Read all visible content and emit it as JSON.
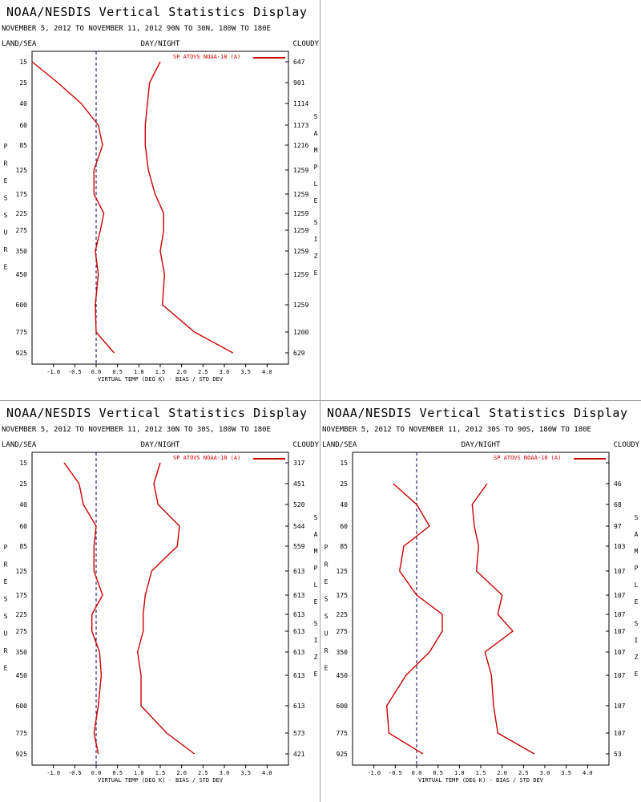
{
  "labels": {
    "land_sea": "LAND/SEA",
    "day_night": "DAY/NIGHT",
    "cloudy": "CLOUDY",
    "pressure": "PRESSURE",
    "sample_size": "SAMPLE SIZE",
    "xlabel": "VIRTUAL TEMP (DEG K) - BIAS / STD DEV",
    "legend": "SP ATOVS NOAA-18 (A)"
  },
  "colors": {
    "series": "#cc0000",
    "zero_line": "#00005a",
    "axis": "#000000",
    "divider": "#9a9a9a"
  },
  "chart_data": [
    {
      "type": "line",
      "title": "NOAA/NESDIS Vertical Statistics Display",
      "subtitle": "NOVEMBER 5, 2012 TO NOVEMBER 11, 2012 90N TO 30N, 180W TO 180E",
      "xlabel": "VIRTUAL TEMP (DEG K) - BIAS / STD DEV",
      "xlim": [
        -1.5,
        4.5
      ],
      "x_ticks": [
        "-1.0",
        "-0.5",
        "0.0",
        "0.5",
        "1.0",
        "1.5",
        "2.0",
        "2.5",
        "3.0",
        "3.5",
        "4.0"
      ],
      "pressure_levels": [
        "15",
        "25",
        "40",
        "60",
        "85",
        "125",
        "175",
        "225",
        "275",
        "350",
        "450",
        "600",
        "775",
        "925"
      ],
      "sample_size": [
        "647",
        "901",
        "1114",
        "1173",
        "1216",
        "1259",
        "1259",
        "1259",
        "1259",
        "1259",
        "1259",
        "1259",
        "1200",
        "629"
      ],
      "series": [
        {
          "name": "bias",
          "x": [
            -1.5,
            -0.9,
            -0.35,
            0.05,
            0.15,
            -0.05,
            -0.05,
            0.18,
            0.1,
            -0.02,
            0.05,
            -0.02,
            0.0,
            0.42
          ]
        },
        {
          "name": "std_dev",
          "x": [
            1.5,
            1.25,
            1.2,
            1.15,
            1.15,
            1.22,
            1.38,
            1.58,
            1.58,
            1.5,
            1.6,
            1.55,
            2.3,
            3.2
          ]
        }
      ]
    },
    {
      "type": "line",
      "title": "NOAA/NESDIS Vertical Statistics Display",
      "subtitle": "NOVEMBER 5, 2012 TO NOVEMBER 11, 2012 30N TO 30S, 180W TO 180E",
      "xlabel": "VIRTUAL TEMP (DEG K) - BIAS / STD DEV",
      "xlim": [
        -1.5,
        4.5
      ],
      "x_ticks": [
        "-1.0",
        "-0.5",
        "0.0",
        "0.5",
        "1.0",
        "1.5",
        "2.0",
        "2.5",
        "3.0",
        "3.5",
        "4.0"
      ],
      "pressure_levels": [
        "15",
        "25",
        "40",
        "60",
        "85",
        "125",
        "175",
        "225",
        "275",
        "350",
        "450",
        "600",
        "775",
        "925"
      ],
      "sample_size": [
        "317",
        "451",
        "520",
        "544",
        "559",
        "613",
        "613",
        "613",
        "613",
        "613",
        "613",
        "613",
        "573",
        "421"
      ],
      "series": [
        {
          "name": "bias",
          "x": [
            -0.75,
            -0.4,
            -0.3,
            0.0,
            -0.05,
            -0.05,
            0.15,
            -0.1,
            -0.1,
            0.08,
            0.12,
            0.05,
            -0.05,
            0.05
          ]
        },
        {
          "name": "std_dev",
          "x": [
            1.5,
            1.35,
            1.45,
            1.95,
            1.9,
            1.3,
            1.15,
            1.1,
            1.1,
            0.97,
            1.05,
            1.05,
            1.65,
            2.3
          ]
        }
      ]
    },
    {
      "type": "line",
      "title": "NOAA/NESDIS Vertical Statistics Display",
      "subtitle": "NOVEMBER 5, 2012 TO NOVEMBER 11, 2012 30S TO 90S, 180W TO 180E",
      "xlabel": "VIRTUAL TEMP (DEG K) - BIAS / STD DEV",
      "xlim": [
        -1.5,
        4.5
      ],
      "x_ticks": [
        "-1.0",
        "-0.5",
        "0.0",
        "0.5",
        "1.0",
        "1.5",
        "2.0",
        "2.5",
        "3.0",
        "3.5",
        "4.0"
      ],
      "pressure_levels": [
        "15",
        "25",
        "40",
        "60",
        "85",
        "125",
        "175",
        "225",
        "275",
        "350",
        "450",
        "600",
        "775",
        "925"
      ],
      "sample_size": [
        "",
        "46",
        "68",
        "97",
        "103",
        "107",
        "107",
        "107",
        "107",
        "107",
        "107",
        "107",
        "107",
        "53"
      ],
      "series": [
        {
          "name": "bias",
          "x": [
            null,
            -0.55,
            0.0,
            0.3,
            -0.3,
            -0.4,
            0.0,
            0.6,
            0.6,
            0.3,
            -0.25,
            -0.7,
            -0.65,
            0.15
          ]
        },
        {
          "name": "std_dev",
          "x": [
            null,
            1.65,
            1.3,
            1.35,
            1.45,
            1.4,
            2.0,
            1.9,
            2.25,
            1.6,
            1.75,
            1.8,
            1.9,
            2.75
          ]
        }
      ]
    }
  ]
}
